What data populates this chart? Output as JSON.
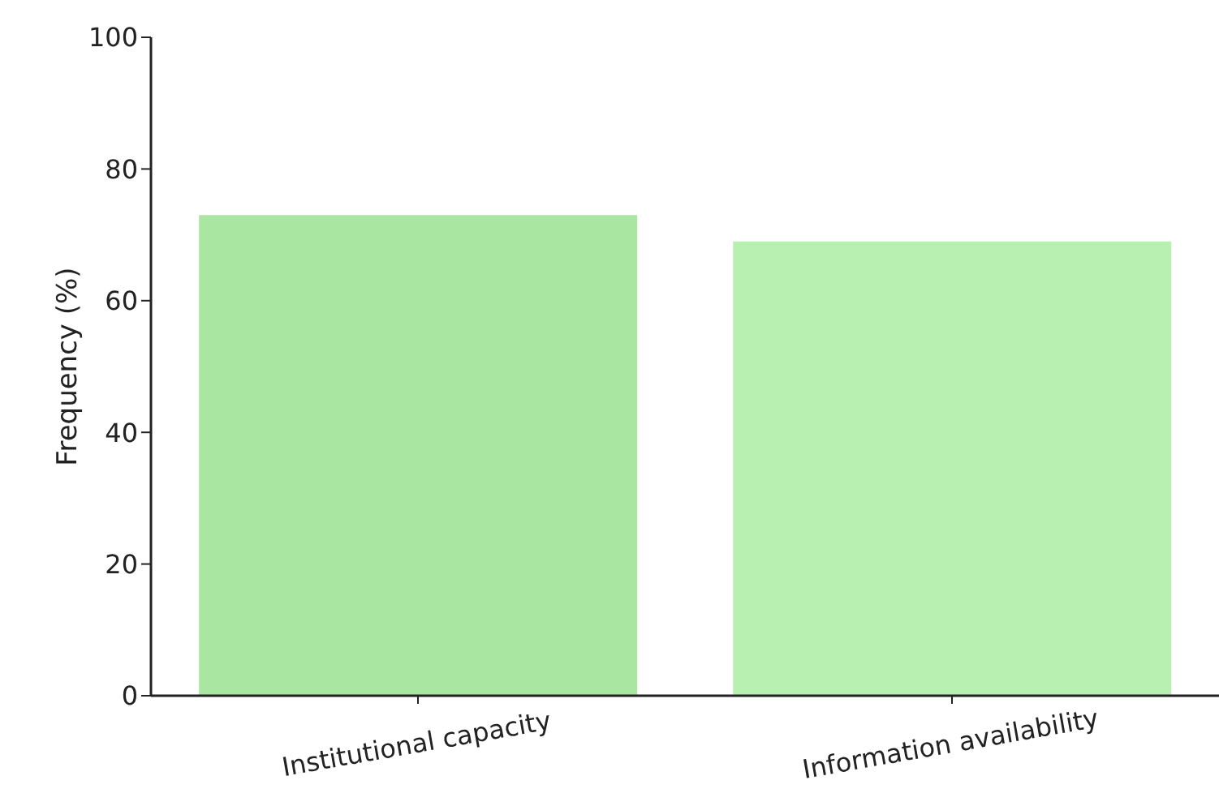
{
  "chart_data": {
    "type": "bar",
    "ylabel": "Frequency (%)",
    "categories": [
      "Institutional capacity",
      "Information availability"
    ],
    "values": [
      73,
      69
    ],
    "colors": [
      "#a8e6a1",
      "#b8f0b1"
    ],
    "ylim": [
      0,
      100
    ],
    "yticks": [
      0,
      20,
      40,
      60,
      80,
      100
    ],
    "grid": false,
    "legend": false
  }
}
